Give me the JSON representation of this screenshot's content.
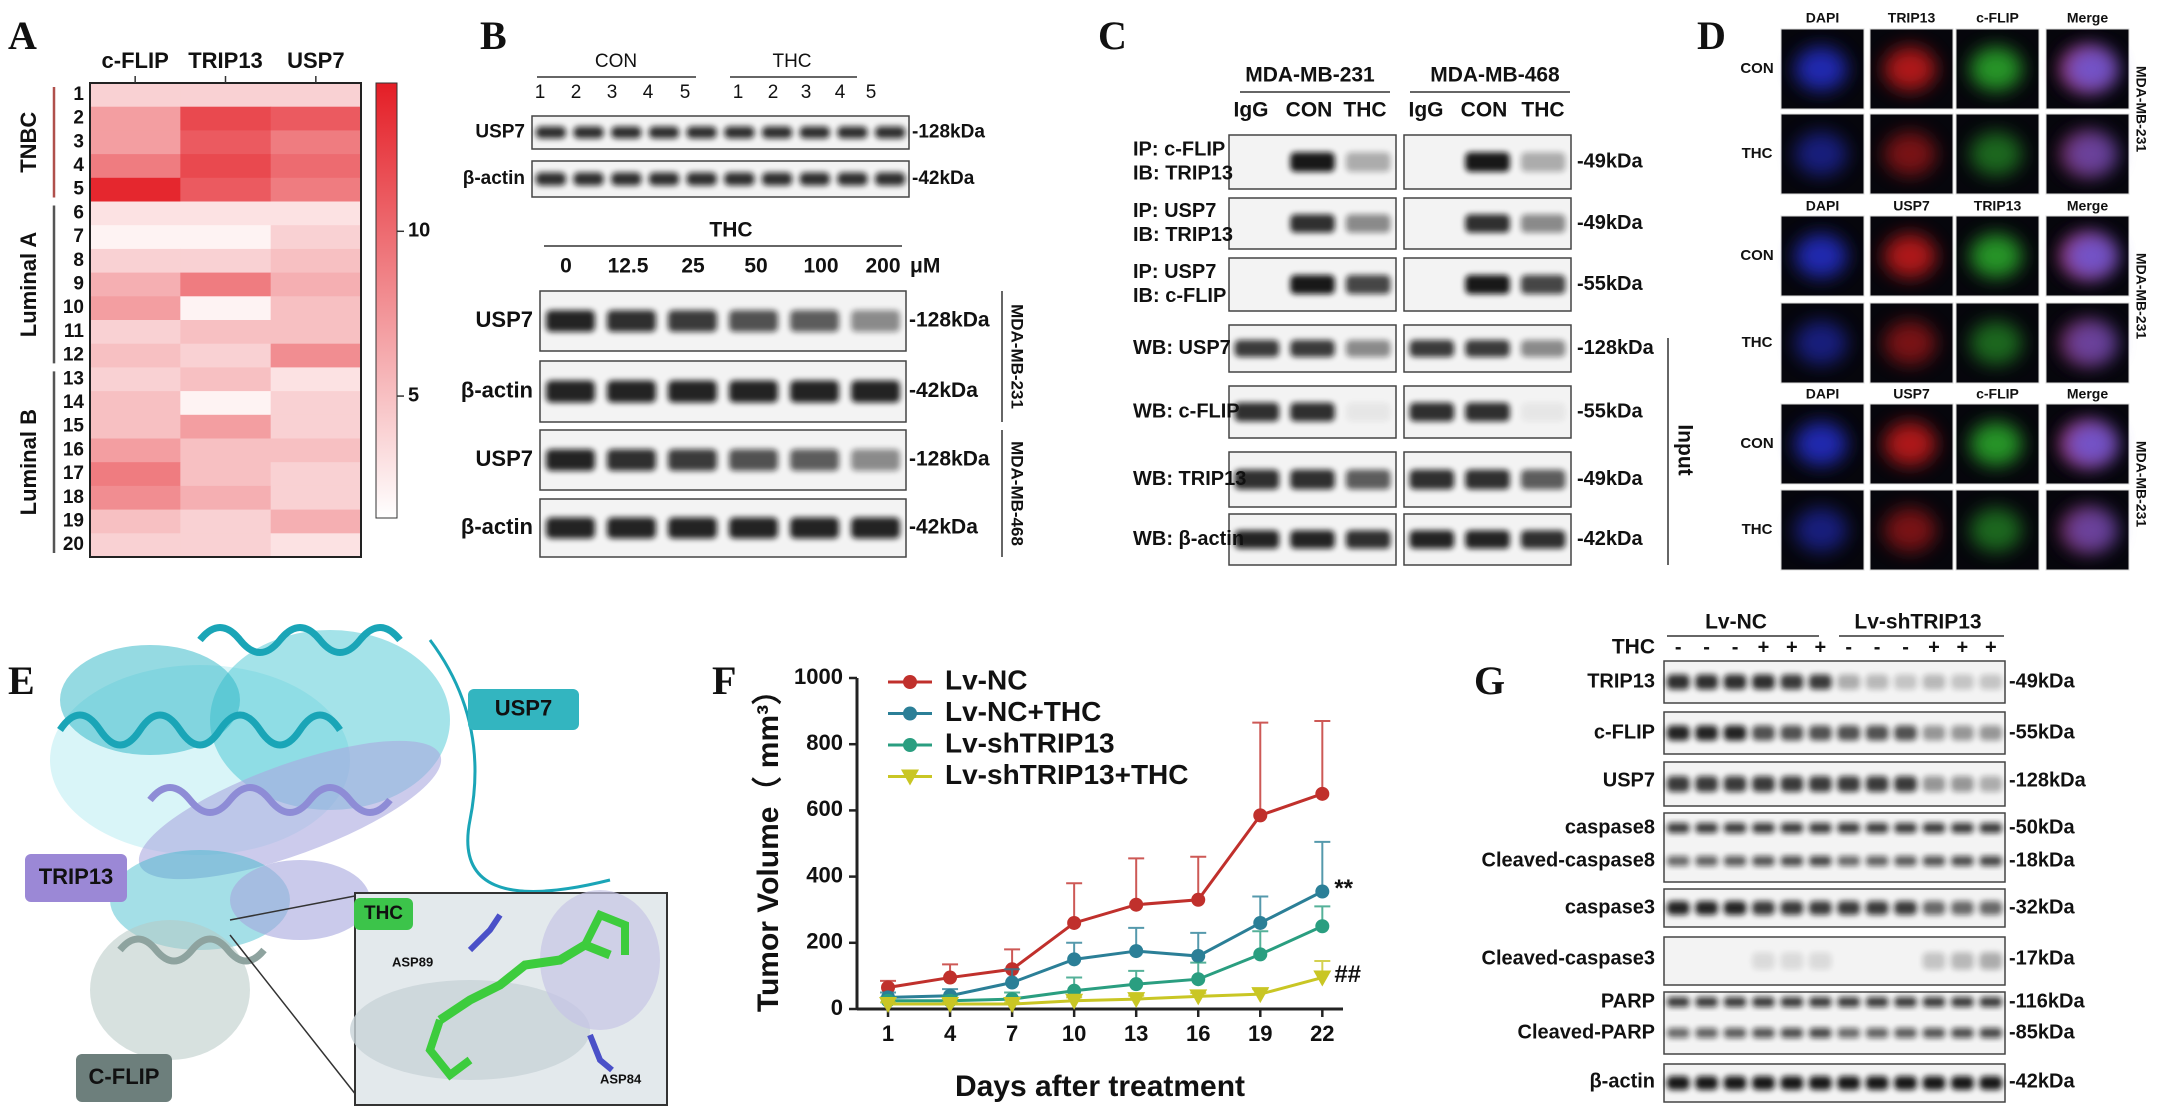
{
  "panel_letters": [
    "A",
    "B",
    "C",
    "D",
    "E",
    "F",
    "G"
  ],
  "chart_data": [
    {
      "type": "heatmap",
      "x_categories": [
        "c-FLIP",
        "TRIP13",
        "USP7"
      ],
      "y_categories": [
        "1",
        "2",
        "3",
        "4",
        "5",
        "6",
        "7",
        "8",
        "9",
        "10",
        "11",
        "12",
        "13",
        "14",
        "15",
        "16",
        "17",
        "18",
        "19",
        "20"
      ],
      "groups": [
        "TNBC",
        "Luminal A",
        "Luminal B"
      ],
      "values": [
        [
          4,
          4,
          4
        ],
        [
          7,
          12,
          11
        ],
        [
          7,
          11,
          9
        ],
        [
          9,
          12,
          10
        ],
        [
          14,
          11,
          9
        ],
        [
          3,
          3,
          3
        ],
        [
          2,
          2,
          4
        ],
        [
          4,
          4,
          5
        ],
        [
          6,
          9,
          6
        ],
        [
          7,
          2,
          5
        ],
        [
          4,
          5,
          5
        ],
        [
          5,
          4,
          8
        ],
        [
          4,
          5,
          3
        ],
        [
          5,
          2,
          4
        ],
        [
          5,
          7,
          4
        ],
        [
          7,
          5,
          5
        ],
        [
          9,
          5,
          4
        ],
        [
          8,
          6,
          4
        ],
        [
          5,
          4,
          6
        ],
        [
          4,
          4,
          3
        ]
      ],
      "clim": [
        1.3,
        14.5
      ],
      "cticks": [
        5,
        10
      ],
      "colors": [
        "#ffffff",
        "#e41e26"
      ]
    },
    {
      "type": "line",
      "x": [
        1,
        4,
        7,
        10,
        13,
        16,
        19,
        22
      ],
      "xlim": [
        -0.5,
        23
      ],
      "xticks": [
        1,
        4,
        7,
        10,
        13,
        16,
        19,
        22
      ],
      "ylim": [
        0,
        1000
      ],
      "yticks": [
        0,
        200,
        400,
        600,
        800,
        1000
      ],
      "xlabel": "Days after treatment",
      "ylabel": "Tumor Volume（ mm³）",
      "series": [
        {
          "name": "Lv-NC",
          "color": "#c0302c",
          "marker": "circle",
          "values": [
            65,
            95,
            120,
            260,
            315,
            330,
            585,
            650
          ],
          "errors": [
            20,
            40,
            60,
            120,
            140,
            130,
            280,
            220
          ]
        },
        {
          "name": "Lv-NC+THC",
          "color": "#2b7f97",
          "marker": "circle",
          "values": [
            35,
            40,
            80,
            150,
            175,
            160,
            260,
            355
          ],
          "errors": [
            15,
            20,
            40,
            50,
            70,
            70,
            80,
            150
          ]
        },
        {
          "name": "Lv-shTRIP13",
          "color": "#2a9e80",
          "marker": "circle",
          "values": [
            25,
            25,
            30,
            55,
            75,
            90,
            165,
            250
          ],
          "errors": [
            10,
            15,
            20,
            40,
            40,
            50,
            70,
            60
          ]
        },
        {
          "name": "Lv-shTRIP13+THC",
          "color": "#c9c624",
          "marker": "triangle-down",
          "values": [
            15,
            15,
            15,
            25,
            30,
            38,
            45,
            95
          ],
          "errors": [
            5,
            5,
            5,
            10,
            10,
            10,
            15,
            50
          ]
        }
      ],
      "annotations": [
        "**",
        "##"
      ]
    }
  ],
  "panel_B": {
    "groups": [
      "CON",
      "THC"
    ],
    "lanes": [
      "1",
      "2",
      "3",
      "4",
      "5",
      "1",
      "2",
      "3",
      "4",
      "5"
    ],
    "blots_top": [
      {
        "label": "USP7",
        "size": "-128kDa"
      },
      {
        "label": "β-actin",
        "size": "-42kDa"
      }
    ],
    "treatment": "THC",
    "doses": [
      "0",
      "12.5",
      "25",
      "50",
      "100",
      "200"
    ],
    "unit": "μM",
    "blots_bottom": [
      {
        "label": "USP7",
        "size": "-128kDa"
      },
      {
        "label": "β-actin",
        "size": "-42kDa"
      },
      {
        "label": "USP7",
        "size": "-128kDa"
      },
      {
        "label": "β-actin",
        "size": "-42kDa"
      }
    ],
    "cell_lines": [
      "MDA-MB-231",
      "MDA-MB-468"
    ]
  },
  "panel_C": {
    "cell_lines": [
      "MDA-MB-231",
      "MDA-MB-468"
    ],
    "lanes": [
      "IgG",
      "CON",
      "THC",
      "IgG",
      "CON",
      "THC"
    ],
    "rows": [
      {
        "lines": [
          "IP: c-FLIP",
          "IB: TRIP13"
        ],
        "size": "-49kDa"
      },
      {
        "lines": [
          "IP: USP7",
          "IB: TRIP13"
        ],
        "size": "-49kDa"
      },
      {
        "lines": [
          "IP: USP7",
          "IB: c-FLIP"
        ],
        "size": "-55kDa"
      },
      {
        "lines": [
          "WB: USP7"
        ],
        "size": "-128kDa"
      },
      {
        "lines": [
          "WB: c-FLIP"
        ],
        "size": "-55kDa"
      },
      {
        "lines": [
          "WB: TRIP13"
        ],
        "size": "-49kDa"
      },
      {
        "lines": [
          "WB: β-actin"
        ],
        "size": "-42kDa"
      }
    ],
    "input": "Input"
  },
  "panel_D": {
    "groups": [
      {
        "headers": [
          "DAPI",
          "TRIP13",
          "c-FLIP",
          "Merge"
        ],
        "rows": [
          "CON",
          "THC"
        ],
        "cell_line": "MDA-MB-231"
      },
      {
        "headers": [
          "DAPI",
          "USP7",
          "TRIP13",
          "Merge"
        ],
        "rows": [
          "CON",
          "THC"
        ],
        "cell_line": "MDA-MB-231"
      },
      {
        "headers": [
          "DAPI",
          "USP7",
          "c-FLIP",
          "Merge"
        ],
        "rows": [
          "CON",
          "THC"
        ],
        "cell_line": "MDA-MB-231"
      }
    ]
  },
  "panel_E": {
    "labels": [
      "USP7",
      "TRIP13",
      "C-FLIP",
      "THC",
      "ASP89",
      "ASP84"
    ]
  },
  "panel_G": {
    "groups": [
      "Lv-NC",
      "Lv-shTRIP13"
    ],
    "treatment": "THC",
    "signs": [
      "-",
      "-",
      "-",
      "+",
      "+",
      "+",
      "-",
      "-",
      "-",
      "+",
      "+",
      "+"
    ],
    "blots": [
      {
        "labels": [
          "TRIP13"
        ],
        "sizes": [
          "-49kDa"
        ]
      },
      {
        "labels": [
          "c-FLIP"
        ],
        "sizes": [
          "-55kDa"
        ]
      },
      {
        "labels": [
          "USP7"
        ],
        "sizes": [
          "-128kDa"
        ]
      },
      {
        "labels": [
          "caspase8",
          "Cleaved-caspase8"
        ],
        "sizes": [
          "-50kDa",
          "-18kDa"
        ]
      },
      {
        "labels": [
          "caspase3"
        ],
        "sizes": [
          "-32kDa"
        ]
      },
      {
        "labels": [
          "Cleaved-caspase3"
        ],
        "sizes": [
          "-17kDa"
        ]
      },
      {
        "labels": [
          "PARP",
          "Cleaved-PARP"
        ],
        "sizes": [
          "-116kDa",
          "-85kDa"
        ]
      },
      {
        "labels": [
          "β-actin"
        ],
        "sizes": [
          "-42kDa"
        ]
      }
    ]
  }
}
